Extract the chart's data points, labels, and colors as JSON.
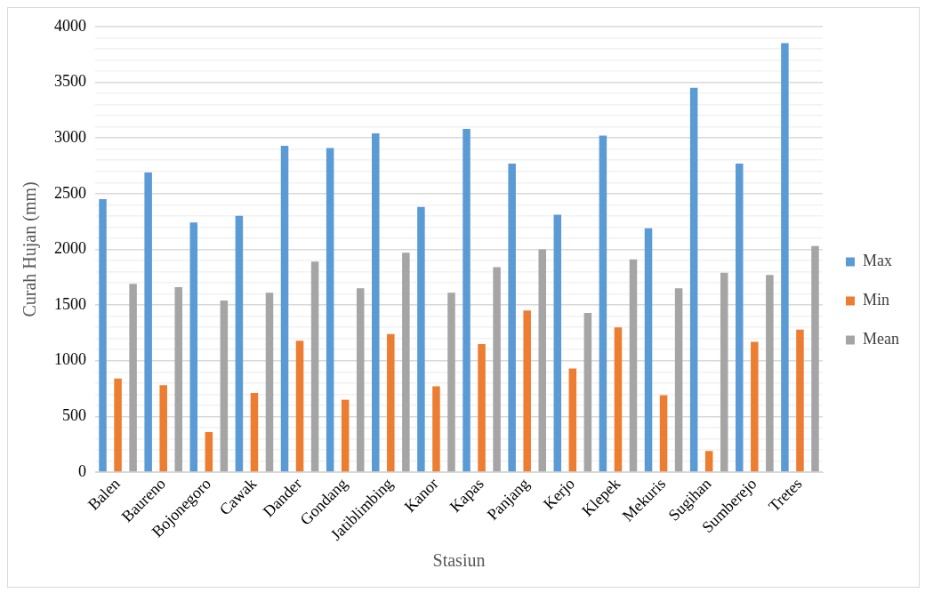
{
  "chart_data": {
    "type": "bar",
    "xlabel": "Stasiun",
    "ylabel": "Curah Hujan (mm)",
    "categories": [
      "Balen",
      "Baureno",
      "Bojonegoro",
      "Cawak",
      "Dander",
      "Gondang",
      "Jatiblimbing",
      "Kanor",
      "Kapas",
      "Panjang",
      "Kerjo",
      "Klepek",
      "Mekuris",
      "Sugihan",
      "Sumberejo",
      "Tretes"
    ],
    "series": [
      {
        "name": "Max",
        "color": "#5b9bd5",
        "values": [
          2450,
          2690,
          2240,
          2300,
          2930,
          2910,
          3040,
          2380,
          3080,
          2770,
          2310,
          3020,
          2190,
          3450,
          2770,
          3850
        ]
      },
      {
        "name": "Min",
        "color": "#ed7d31",
        "values": [
          840,
          780,
          360,
          710,
          1180,
          650,
          1240,
          770,
          1150,
          1450,
          930,
          1300,
          690,
          190,
          1170,
          1280
        ]
      },
      {
        "name": "Mean",
        "color": "#a5a5a5",
        "values": [
          1690,
          1660,
          1540,
          1610,
          1890,
          1650,
          1970,
          1610,
          1840,
          2000,
          1430,
          1910,
          1650,
          1790,
          1770,
          2030
        ]
      }
    ],
    "ylim": [
      0,
      4000
    ],
    "yticks": [
      0,
      {
        "value": 100,
        "label": null
      },
      {
        "value": 200,
        "label": null
      },
      {
        "value": 300,
        "label": null
      },
      {
        "value": 400,
        "label": null
      },
      500,
      {
        "value": 600,
        "label": null
      },
      {
        "value": 700,
        "label": null
      },
      {
        "value": 800,
        "label": null
      },
      {
        "value": 900,
        "label": null
      },
      1000,
      {
        "value": 1100,
        "label": null
      },
      {
        "value": 1200,
        "label": null
      },
      {
        "value": 1300,
        "label": null
      },
      {
        "value": 1400,
        "label": null
      },
      1500,
      {
        "value": 1600,
        "label": null
      },
      {
        "value": 1700,
        "label": null
      },
      {
        "value": 1800,
        "label": null
      },
      {
        "value": 1900,
        "label": null
      },
      2000,
      {
        "value": 2100,
        "label": null
      },
      {
        "value": 2200,
        "label": null
      },
      {
        "value": 2300,
        "label": null
      },
      {
        "value": 2400,
        "label": null
      },
      2500,
      {
        "value": 2600,
        "label": null
      },
      {
        "value": 2700,
        "label": null
      },
      {
        "value": 2800,
        "label": null
      },
      {
        "value": 2900,
        "label": null
      },
      3000,
      {
        "value": 3100,
        "label": null
      },
      {
        "value": 3200,
        "label": null
      },
      {
        "value": 3300,
        "label": null
      },
      {
        "value": 3400,
        "label": null
      },
      3500,
      {
        "value": 3600,
        "label": null
      },
      {
        "value": 3700,
        "label": null
      },
      {
        "value": 3800,
        "label": null
      },
      {
        "value": 3900,
        "label": null
      },
      4000
    ],
    "grid": "y",
    "legend": "right"
  }
}
